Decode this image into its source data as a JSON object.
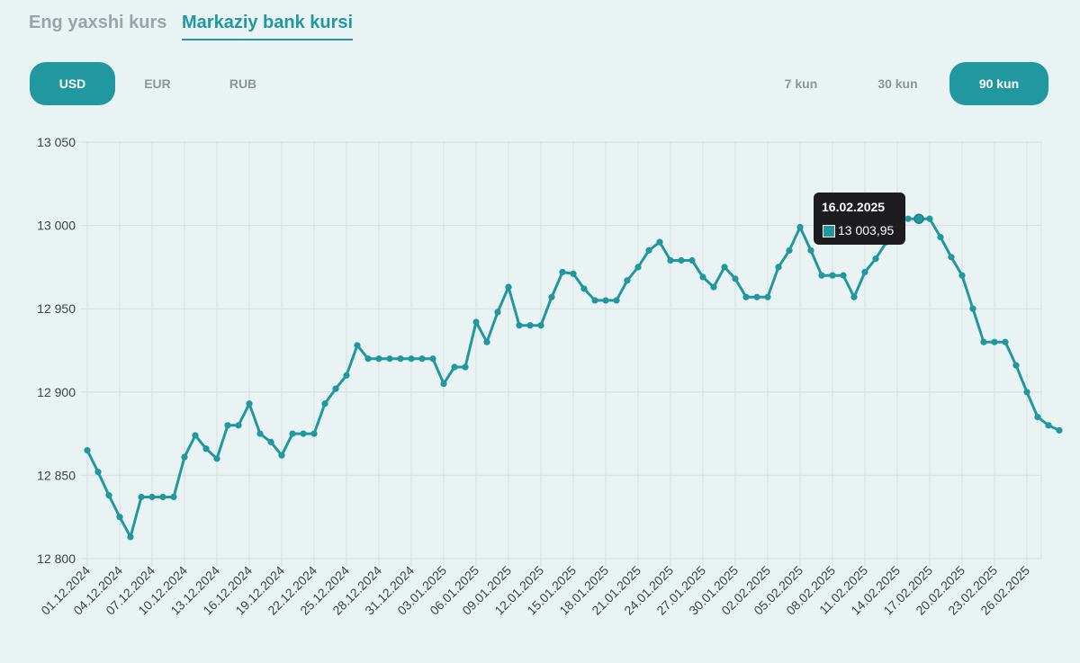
{
  "tabs": [
    {
      "label": "Eng yaxshi kurs",
      "active": false
    },
    {
      "label": "Markaziy bank kursi",
      "active": true
    }
  ],
  "currencies": [
    {
      "label": "USD",
      "active": true
    },
    {
      "label": "EUR",
      "active": false
    },
    {
      "label": "RUB",
      "active": false
    }
  ],
  "periods": [
    {
      "label": "7 kun",
      "active": false
    },
    {
      "label": "30 kun",
      "active": false
    },
    {
      "label": "90 kun",
      "active": true
    }
  ],
  "colors": {
    "accent": "#21979f",
    "background": "#e9f3f3",
    "tooltip": "#1d1d1f"
  },
  "tooltip": {
    "date": "16.02.2025",
    "value": "13 003,95"
  },
  "chart_data": {
    "type": "line",
    "title": "",
    "xlabel": "",
    "ylabel": "",
    "ylim": [
      12800,
      13050
    ],
    "yticks": [
      12800,
      12850,
      12900,
      12950,
      13000,
      13050
    ],
    "ytick_labels": [
      "12 800",
      "12 850",
      "12 900",
      "12 950",
      "13 000",
      "13 050"
    ],
    "start_date": "01.12.2024",
    "x_tick_labels": [
      "01.12.2024",
      "04.12.2024",
      "07.12.2024",
      "10.12.2024",
      "13.12.2024",
      "16.12.2024",
      "19.12.2024",
      "22.12.2024",
      "25.12.2024",
      "28.12.2024",
      "31.12.2024",
      "03.01.2025",
      "06.01.2025",
      "09.01.2025",
      "12.01.2025",
      "15.01.2025",
      "18.01.2025",
      "21.01.2025",
      "24.01.2025",
      "27.01.2025",
      "30.01.2025",
      "02.02.2025",
      "05.02.2025",
      "08.02.2025",
      "11.02.2025",
      "14.02.2025",
      "17.02.2025",
      "20.02.2025",
      "23.02.2025",
      "26.02.2025"
    ],
    "grid": true,
    "series": [
      {
        "values": [
          12865,
          12852,
          12838,
          12825,
          12813,
          12837,
          12837,
          12837,
          12837,
          12861,
          12874,
          12866,
          12860,
          12880,
          12880,
          12893,
          12875,
          12870,
          12862,
          12875,
          12875,
          12875,
          12893,
          12902,
          12910,
          12928,
          12920,
          12920,
          12920,
          12920,
          12920,
          12920,
          12920,
          12905,
          12915,
          12915,
          12942,
          12930,
          12948,
          12963,
          12940,
          12940,
          12940,
          12957,
          12972,
          12971,
          12962,
          12955,
          12955,
          12955,
          12967,
          12975,
          12985,
          12990,
          12979,
          12979,
          12979,
          12969,
          12963,
          12975,
          12968,
          12957,
          12957,
          12957,
          12975,
          12985,
          12999,
          12985,
          12970,
          12970,
          12970,
          12957,
          12972,
          12980,
          12990,
          13003,
          13004,
          13004,
          13004,
          12993,
          12981,
          12970,
          12950,
          12930,
          12930,
          12930,
          12916,
          12900,
          12885,
          12880,
          12877
        ]
      }
    ]
  }
}
